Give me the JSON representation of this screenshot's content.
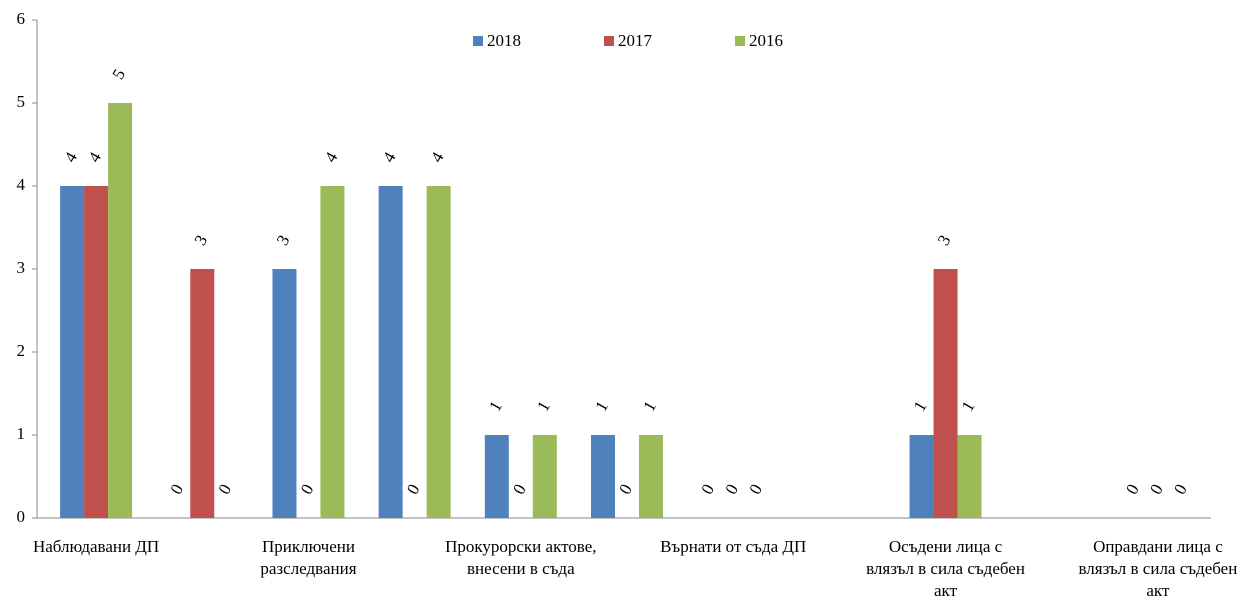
{
  "chart_data": {
    "type": "bar",
    "categories": [
      "Наблюдавани ДП",
      null,
      "Приключени разследвания",
      null,
      "Прокурорски актове, внесени в съда",
      null,
      "Върнати от съда ДП",
      null,
      "Осъдени лица с влязъл в сила съдебен акт",
      null,
      "Оправдани лица с влязъл в сила съдебен акт"
    ],
    "series": [
      {
        "name": "2018",
        "color": "#4f81bd",
        "values": [
          4,
          0,
          3,
          4,
          1,
          1,
          0,
          null,
          1,
          null,
          0
        ]
      },
      {
        "name": "2017",
        "color": "#c0504d",
        "values": [
          4,
          3,
          0,
          0,
          0,
          0,
          0,
          null,
          3,
          null,
          0
        ]
      },
      {
        "name": "2016",
        "color": "#9bbb59",
        "values": [
          5,
          0,
          4,
          4,
          1,
          1,
          0,
          null,
          1,
          null,
          0
        ]
      }
    ],
    "ylim": [
      0,
      6
    ],
    "yticks": [
      0,
      1,
      2,
      3,
      4,
      5,
      6
    ],
    "legend": "top",
    "data_labels": true
  }
}
